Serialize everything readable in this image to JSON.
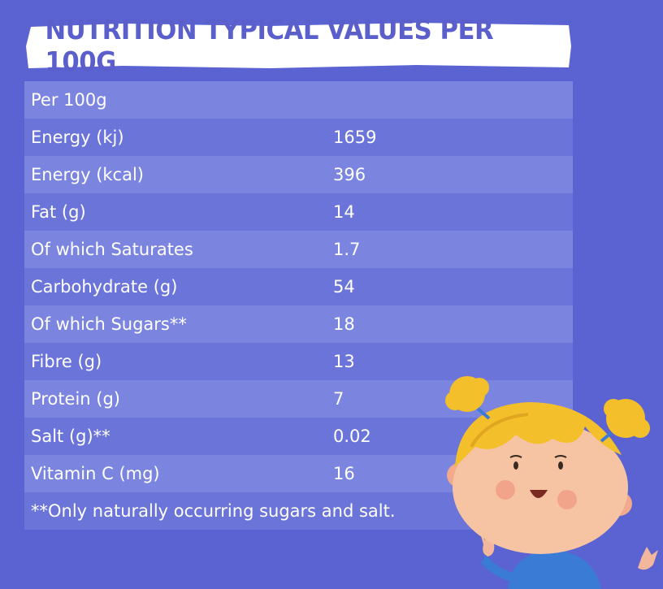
{
  "title": "NUTRITION TYPICAL VALUES PER 100G",
  "table": {
    "header": "Per 100g",
    "rows": [
      {
        "name": "Energy (kj)",
        "value": "1659"
      },
      {
        "name": "Energy (kcal)",
        "value": "396"
      },
      {
        "name": "Fat (g)",
        "value": "14"
      },
      {
        "name": "Of which Saturates",
        "value": "1.7"
      },
      {
        "name": "Carbohydrate (g)",
        "value": "54"
      },
      {
        "name": "Of which Sugars**",
        "value": "18"
      },
      {
        "name": "Fibre (g)",
        "value": "13"
      },
      {
        "name": "Protein (g)",
        "value": "7"
      },
      {
        "name": "Salt (g)**",
        "value": "0.02"
      },
      {
        "name": "Vitamin C (mg)",
        "value": "16"
      }
    ],
    "footnote": "**Only naturally occurring sugars and salt."
  },
  "colors": {
    "background": "#5a63d1",
    "row_light": "#7b85df",
    "row_dark": "#6b74d9",
    "title_text": "#5a5fcc"
  }
}
